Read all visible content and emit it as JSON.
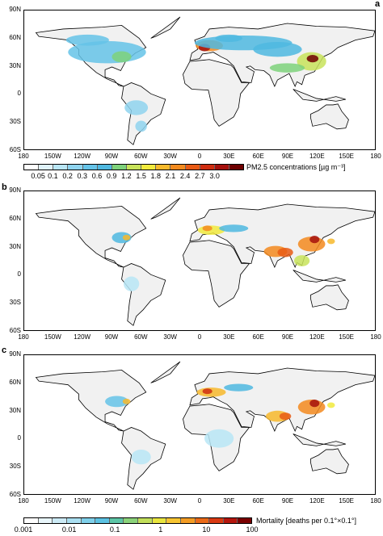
{
  "panels": [
    {
      "letter": "a",
      "colorbar_label": "PM2.5 concentrations [µg m⁻³]",
      "colorbar_ticks": [
        "0.05",
        "0.1",
        "0.2",
        "0.3",
        "0.6",
        "0.9",
        "1.2",
        "1.5",
        "1.8",
        "2.1",
        "2.4",
        "2.7",
        "3.0"
      ]
    },
    {
      "letter": "b"
    },
    {
      "letter": "c",
      "colorbar_label": "Mortality [deaths per 0.1°×0.1°]",
      "colorbar_ticks": [
        "0.001",
        "0.01",
        "0.1",
        "1",
        "10",
        "100"
      ]
    }
  ],
  "lat_labels": [
    "90N",
    "60N",
    "30N",
    "0",
    "30S",
    "60S"
  ],
  "lon_labels": [
    "180",
    "150W",
    "120W",
    "90W",
    "60W",
    "30W",
    "0",
    "30E",
    "60E",
    "90E",
    "120E",
    "150E",
    "180"
  ],
  "colors": {
    "land": "#f1f1f1",
    "ramp": [
      "#ffffff",
      "#e0f3fb",
      "#b9e6f6",
      "#8fd4ef",
      "#65c3e8",
      "#4fb8e0",
      "#7ed27b",
      "#c8e35a",
      "#f1ea3d",
      "#f7b92c",
      "#f38a1e",
      "#e85a14",
      "#cf2d10",
      "#a5100c",
      "#6e0000"
    ]
  }
}
